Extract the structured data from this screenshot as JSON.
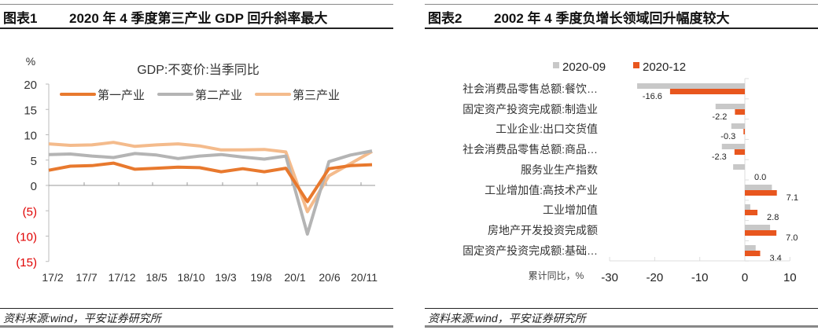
{
  "left": {
    "fig_label": "图表1",
    "title": "2020 年 4 季度第三产业 GDP 回升斜率最大",
    "source": "资料来源:wind，平安证券研究所"
  },
  "right": {
    "fig_label": "图表2",
    "title": "2002 年 4 季度负增长领域回升幅度较大",
    "source": "资料来源:wind，平安证券研究所"
  },
  "chart_data": [
    {
      "type": "line",
      "title": "GDP:不变价:当季同比",
      "ylabel": "%",
      "ylim": [
        -15,
        20
      ],
      "yticks": [
        20,
        15,
        10,
        5,
        0,
        -5,
        -10,
        -15
      ],
      "ytick_labels": [
        "20",
        "15",
        "10",
        "5",
        "0",
        "(5)",
        "(10)",
        "(15)"
      ],
      "negative_tick_color": "#e00000",
      "x_tick_labels": [
        "17/2",
        "17/7",
        "17/12",
        "18/5",
        "18/10",
        "19/3",
        "19/8",
        "20/1",
        "20/6",
        "20/11"
      ],
      "legend_position": "top",
      "series": [
        {
          "name": "第一产业",
          "color": "#e8792e",
          "values": [
            3.0,
            3.8,
            3.9,
            4.4,
            3.2,
            3.4,
            3.6,
            3.5,
            2.7,
            3.3,
            2.7,
            3.4,
            -3.2,
            3.3,
            3.9,
            4.1
          ]
        },
        {
          "name": "第二产业",
          "color": "#b4b4b4",
          "values": [
            6.1,
            6.2,
            5.8,
            5.5,
            6.3,
            6.0,
            5.3,
            5.8,
            6.1,
            5.6,
            5.2,
            5.8,
            -9.6,
            4.7,
            6.0,
            6.8
          ]
        },
        {
          "name": "第三产业",
          "color": "#f4bb8c",
          "values": [
            8.2,
            7.9,
            8.0,
            8.5,
            7.7,
            8.0,
            8.2,
            7.8,
            7.0,
            7.0,
            7.1,
            6.6,
            -5.2,
            1.9,
            4.3,
            6.7
          ]
        }
      ]
    },
    {
      "type": "bar",
      "orientation": "horizontal",
      "xlabel": "累计同比，%",
      "xlim": [
        -30,
        10
      ],
      "xticks": [
        -30,
        -20,
        -10,
        0,
        10
      ],
      "legend_position": "top",
      "categories": [
        "社会消费品零售总额:餐饮…",
        "固定资产投资完成额:制造业",
        "工业企业:出口交货值",
        "社会消费品零售总额:商品…",
        "服务业生产指数",
        "工业增加值:高技术产业",
        "工业增加值",
        "房地产开发投资完成额",
        "固定资产投资完成额:基础…"
      ],
      "series": [
        {
          "name": "2020-09",
          "color": "#c8c8c8",
          "values": [
            -23.9,
            -6.5,
            -3.0,
            -5.1,
            -2.6,
            6.0,
            1.2,
            5.6,
            2.4
          ]
        },
        {
          "name": "2020-12",
          "color": "#e8561e",
          "values": [
            -16.6,
            -2.2,
            -0.3,
            -2.3,
            0.0,
            7.1,
            2.8,
            7.0,
            3.4
          ],
          "data_labels": [
            "-16.6",
            "-2.2",
            "-0.3",
            "-2.3",
            "0.0",
            "7.1",
            "2.8",
            "7.0",
            "3.4"
          ]
        }
      ]
    }
  ]
}
